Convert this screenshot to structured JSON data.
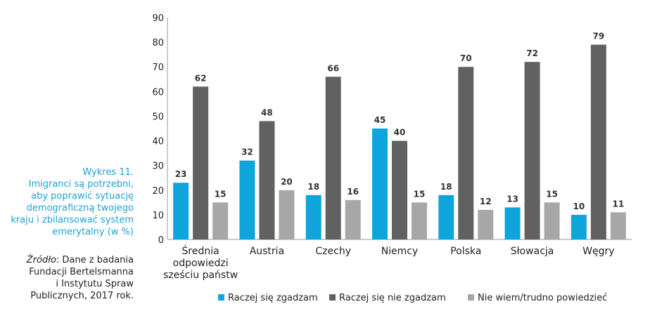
{
  "caption": {
    "lines": [
      "Wykres 11.",
      "Imigranci są potrzebni,",
      "aby poprawić sytuację",
      "demograficzną twojego",
      "kraju i zbilansować system",
      "emerytalny (w %)"
    ]
  },
  "source": {
    "label": "Źródło",
    "lines": [
      ": Dane z badania",
      "Fundacji Bertelsmanna",
      "i Instytutu Spraw",
      "Publicznych, 2017 rok."
    ]
  },
  "chart_data": {
    "type": "bar",
    "categories": [
      [
        "Średnia",
        "odpowiedzi",
        "sześciu państw"
      ],
      [
        "Austria"
      ],
      [
        "Czechy"
      ],
      [
        "Niemcy"
      ],
      [
        "Polska"
      ],
      [
        "Słowacja"
      ],
      [
        "Węgry"
      ]
    ],
    "series": [
      {
        "name": "Raczej się zgadzam",
        "color": "#0ea5dc",
        "values": [
          23,
          32,
          18,
          45,
          18,
          13,
          10
        ]
      },
      {
        "name": "Raczej się nie zgadzam",
        "color": "#616161",
        "values": [
          62,
          48,
          66,
          40,
          70,
          72,
          79
        ]
      },
      {
        "name": "Nie wiem/trudno powiedzieć",
        "color": "#a7a7a7",
        "values": [
          15,
          20,
          16,
          15,
          12,
          15,
          11
        ]
      }
    ],
    "ylim": [
      0,
      90
    ],
    "yticks": [
      0,
      10,
      20,
      30,
      40,
      50,
      60,
      70,
      80,
      90
    ],
    "grid": false,
    "legend": "bottom"
  }
}
